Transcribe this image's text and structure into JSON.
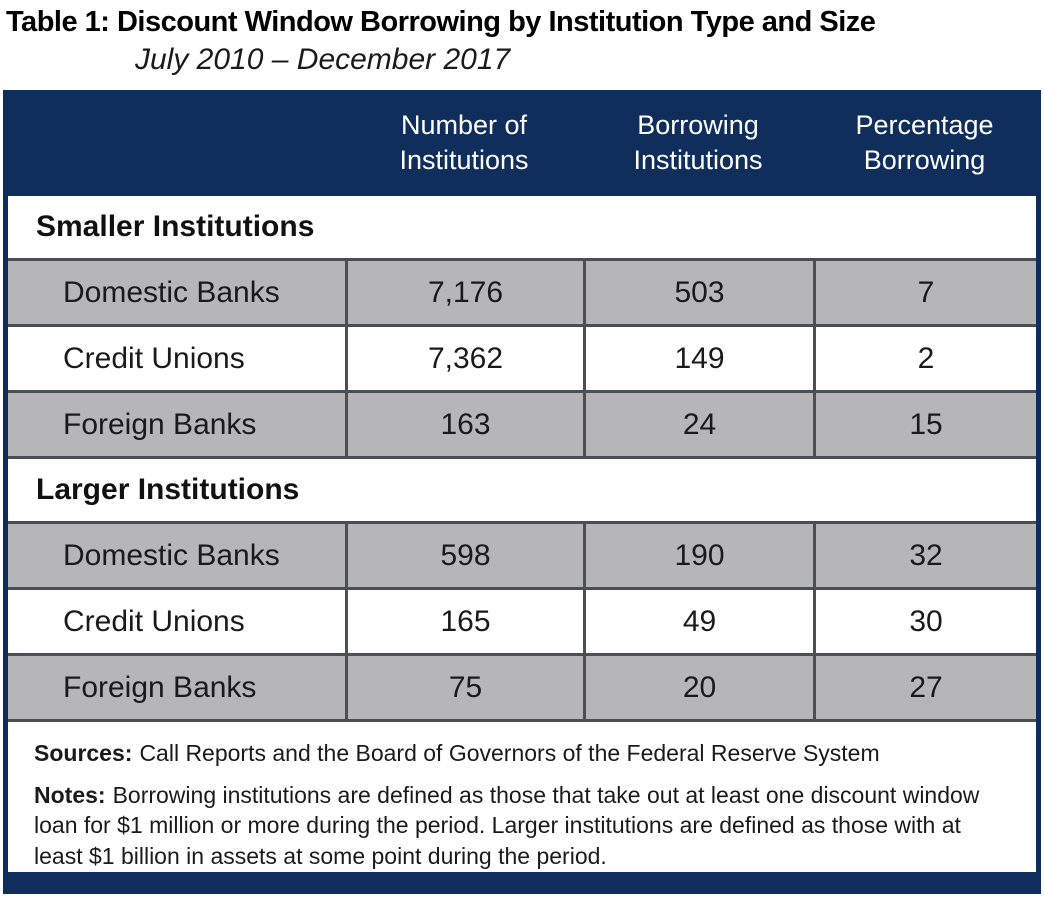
{
  "page": {
    "title": "Table 1: Discount Window Borrowing by Institution Type and Size",
    "subtitle": "July 2010 – December 2017"
  },
  "table": {
    "header": {
      "col1": "",
      "col2": "Number of\nInstitutions",
      "col3": "Borrowing\nInstitutions",
      "col4": "Percentage\nBorrowing"
    },
    "sections": [
      {
        "label": "Smaller Institutions",
        "rows": [
          {
            "label": "Domestic Banks",
            "num_institutions": "7,176",
            "borrowing_institutions": "503",
            "pct_borrowing": "7"
          },
          {
            "label": "Credit Unions",
            "num_institutions": "7,362",
            "borrowing_institutions": "149",
            "pct_borrowing": "2"
          },
          {
            "label": "Foreign Banks",
            "num_institutions": "163",
            "borrowing_institutions": "24",
            "pct_borrowing": "15"
          }
        ]
      },
      {
        "label": "Larger Institutions",
        "rows": [
          {
            "label": "Domestic Banks",
            "num_institutions": "598",
            "borrowing_institutions": "190",
            "pct_borrowing": "32"
          },
          {
            "label": "Credit Unions",
            "num_institutions": "165",
            "borrowing_institutions": "49",
            "pct_borrowing": "30"
          },
          {
            "label": "Foreign Banks",
            "num_institutions": "75",
            "borrowing_institutions": "20",
            "pct_borrowing": "27"
          }
        ]
      }
    ]
  },
  "footer": {
    "sources_label": "Sources:",
    "sources_text": "Call Reports and the Board of Governors of the Federal Reserve System",
    "notes_label": "Notes:",
    "notes_text": "Borrowing institutions are defined as those that take out at least one discount window loan for $1 million or more during the period. Larger institutions are defined as those with at least $1 billion in assets at some point during the period."
  },
  "colors": {
    "navy": "#102e5c",
    "row_gray": "#b6b6b8",
    "border_gray": "#4b4f54",
    "header_text": "#ffffff",
    "body_text": "#1a1a1a"
  },
  "chart_data": {
    "type": "table",
    "title": "Table 1: Discount Window Borrowing by Institution Type and Size",
    "subtitle": "July 2010 – December 2017",
    "columns": [
      "",
      "Number of Institutions",
      "Borrowing Institutions",
      "Percentage Borrowing"
    ],
    "sections": [
      {
        "name": "Smaller Institutions",
        "rows": [
          [
            "Domestic Banks",
            7176,
            503,
            7
          ],
          [
            "Credit Unions",
            7362,
            149,
            2
          ],
          [
            "Foreign Banks",
            163,
            24,
            15
          ]
        ]
      },
      {
        "name": "Larger Institutions",
        "rows": [
          [
            "Domestic Banks",
            598,
            190,
            32
          ],
          [
            "Credit Unions",
            165,
            49,
            30
          ],
          [
            "Foreign Banks",
            75,
            20,
            27
          ]
        ]
      }
    ],
    "sources": "Call Reports and the Board of Governors of the Federal Reserve System",
    "notes": "Borrowing institutions are defined as those that take out at least one discount window loan for $1 million or more during the period. Larger institutions are defined as those with at least $1 billion in assets at some point during the period."
  }
}
